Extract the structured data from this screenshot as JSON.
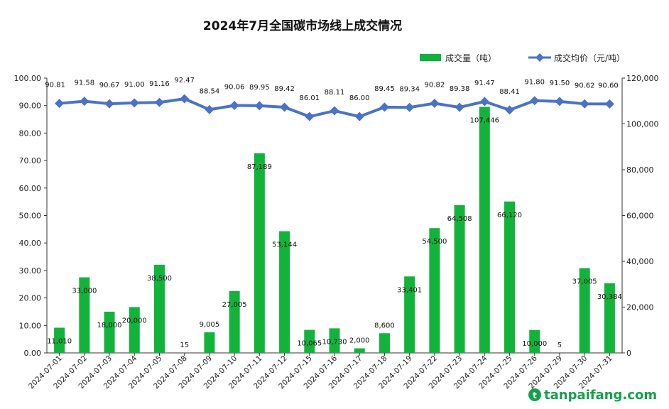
{
  "chart_data": {
    "type": "bar+line",
    "title": "2024年7月全国碳市场线上成交情况",
    "categories": [
      "2024-07-01",
      "2024-07-02",
      "2024-07-03",
      "2024-07-04",
      "2024-07-05",
      "2024-07-08",
      "2024-07-09",
      "2024-07-10",
      "2024-07-11",
      "2024-07-12",
      "2024-07-15",
      "2024-07-16",
      "2024-07-17",
      "2024-07-18",
      "2024-07-19",
      "2024-07-22",
      "2024-07-23",
      "2024-07-24",
      "2024-07-25",
      "2024-07-26",
      "2024-07-29",
      "2024-07-30",
      "2024-07-31"
    ],
    "series": [
      {
        "name": "成交量（吨）",
        "type": "bar",
        "axis": "right",
        "color": "#12b33a",
        "values": [
          11010,
          33000,
          18000,
          20000,
          38500,
          15,
          9005,
          27005,
          87189,
          53144,
          10065,
          10730,
          2000,
          8600,
          33401,
          54500,
          64508,
          107446,
          66120,
          10000,
          5,
          37005,
          30384
        ],
        "labels": [
          "11,010",
          "33,000",
          "18,000",
          "20,000",
          "38,500",
          "15",
          "9,005",
          "27,005",
          "87,189",
          "53,144",
          "10,065",
          "10,730",
          "2,000",
          "8,600",
          "33,401",
          "54,500",
          "64,508",
          "107,446",
          "66,120",
          "10,000",
          "5",
          "37,005",
          "30,384"
        ]
      },
      {
        "name": "成交均价（元/吨）",
        "type": "line",
        "axis": "left",
        "color": "#4a72c8",
        "values": [
          90.81,
          91.58,
          90.67,
          91.0,
          91.16,
          92.47,
          88.54,
          90.06,
          89.95,
          89.42,
          86.01,
          88.11,
          86.0,
          89.45,
          89.34,
          90.82,
          89.38,
          91.47,
          88.41,
          91.8,
          91.5,
          90.62,
          90.6
        ],
        "labels": [
          "90.81",
          "91.58",
          "90.67",
          "91.00",
          "91.16",
          "92.47",
          "88.54",
          "90.06",
          "89.95",
          "89.42",
          "86.01",
          "88.11",
          "86.00",
          "89.45",
          "89.34",
          "90.82",
          "89.38",
          "91.47",
          "88.41",
          "91.80",
          "91.50",
          "90.62",
          "90.60"
        ]
      }
    ],
    "y_left": {
      "lim": [
        0,
        100
      ],
      "ticks": [
        "0.00",
        "10.00",
        "20.00",
        "30.00",
        "40.00",
        "50.00",
        "60.00",
        "70.00",
        "80.00",
        "90.00",
        "100.00"
      ]
    },
    "y_right": {
      "lim": [
        0,
        120000
      ],
      "ticks": [
        "0",
        "20,000",
        "40,000",
        "60,000",
        "80,000",
        "100,000",
        "120,000"
      ]
    },
    "legend_position": "top-right",
    "grid": false
  },
  "watermark": {
    "text": "tanpaifang.com",
    "icon": "leaf-logo-icon"
  }
}
